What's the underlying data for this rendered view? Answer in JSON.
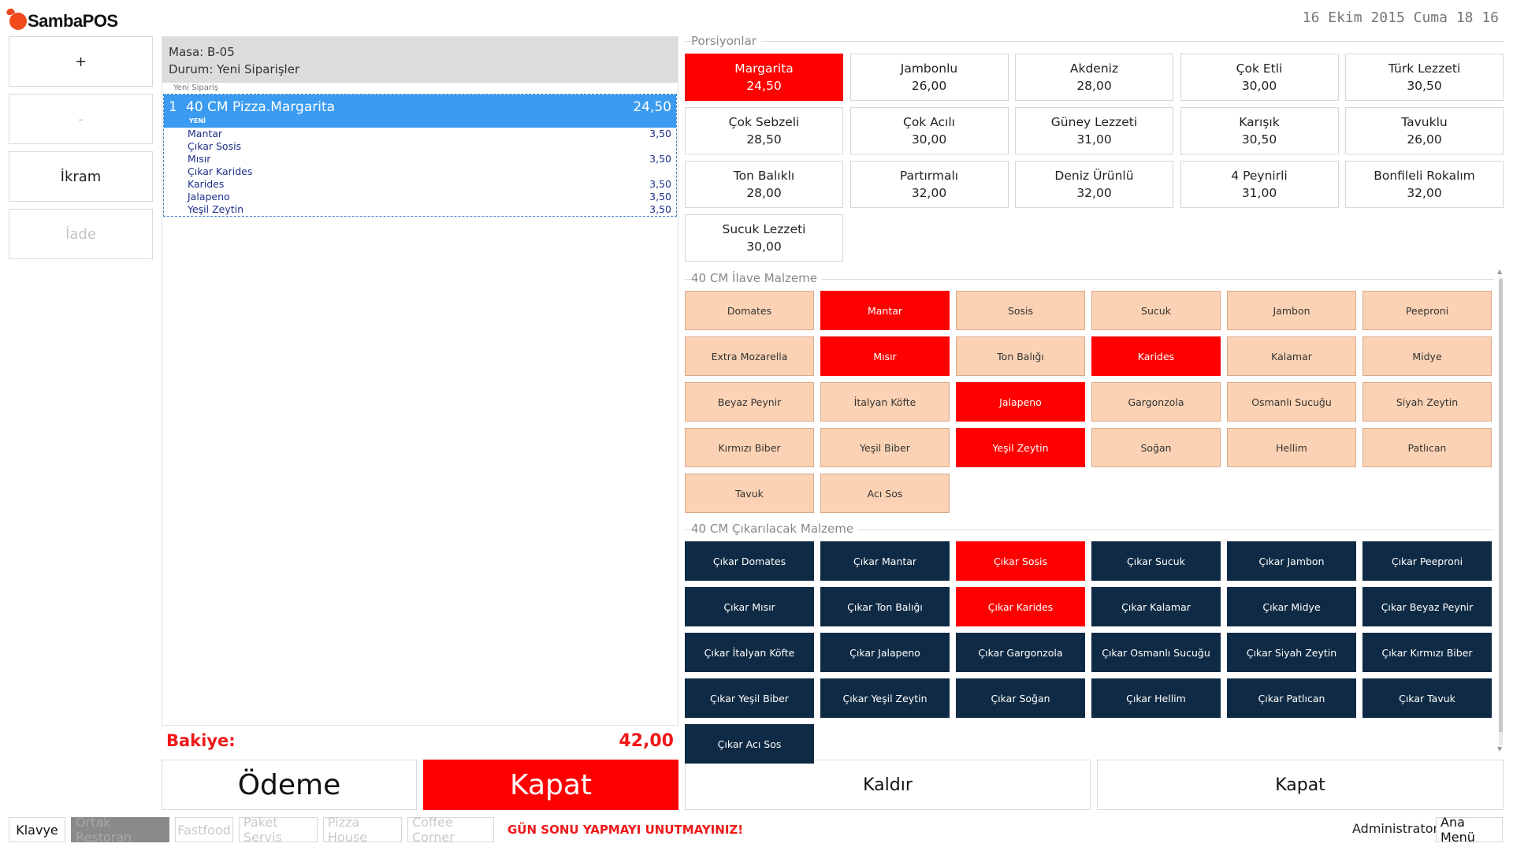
{
  "header": {
    "logo_text": "SambaPOS",
    "datetime": "16 Ekim 2015 Cuma 18 16"
  },
  "left_actions": [
    {
      "label": "+",
      "enabled": true
    },
    {
      "label": "-",
      "enabled": false
    },
    {
      "label": "İkram",
      "enabled": true
    },
    {
      "label": "İade",
      "enabled": false
    }
  ],
  "ticket": {
    "table": "Masa: B-05",
    "status": "Durum: Yeni Siparişler",
    "group_label": "Yeni Sipariş",
    "order": {
      "qty": "1",
      "name": "40 CM Pizza.Margarita",
      "price": "24,50",
      "state": "YENİ",
      "modifiers": [
        {
          "name": "Mantar",
          "price": "3,50"
        },
        {
          "name": "Çıkar Sosis",
          "price": ""
        },
        {
          "name": "Mısır",
          "price": "3,50"
        },
        {
          "name": "Çıkar Karides",
          "price": ""
        },
        {
          "name": "Karides",
          "price": "3,50"
        },
        {
          "name": "Jalapeno",
          "price": "3,50"
        },
        {
          "name": "Yeşil Zeytin",
          "price": "3,50"
        }
      ]
    },
    "balance_label": "Bakiye:",
    "balance_value": "42,00"
  },
  "bottom_buttons": {
    "odeme": "Ödeme",
    "kapat_red": "Kapat",
    "kaldir": "Kaldır",
    "kapat": "Kapat"
  },
  "portions": {
    "title": "Porsiyonlar",
    "items": [
      {
        "name": "Margarita",
        "price": "24,50",
        "selected": true
      },
      {
        "name": "Jambonlu",
        "price": "26,00"
      },
      {
        "name": "Akdeniz",
        "price": "28,00"
      },
      {
        "name": "Çok Etli",
        "price": "30,00"
      },
      {
        "name": "Türk Lezzeti",
        "price": "30,50"
      },
      {
        "name": "Çok Sebzeli",
        "price": "28,50"
      },
      {
        "name": "Çok Acılı",
        "price": "30,00"
      },
      {
        "name": "Güney Lezzeti",
        "price": "31,00"
      },
      {
        "name": "Karışık",
        "price": "30,50"
      },
      {
        "name": "Tavuklu",
        "price": "26,00"
      },
      {
        "name": "Ton Balıklı",
        "price": "28,00"
      },
      {
        "name": "Partırmalı",
        "price": "32,00"
      },
      {
        "name": "Deniz Ürünlü",
        "price": "32,00"
      },
      {
        "name": "4 Peynirli",
        "price": "31,00"
      },
      {
        "name": "Bonfileli Rokalım",
        "price": "32,00"
      },
      {
        "name": "Sucuk Lezzeti",
        "price": "30,00"
      }
    ]
  },
  "extras": {
    "title": "40 CM İlave Malzeme",
    "items": [
      {
        "name": "Domates"
      },
      {
        "name": "Mantar",
        "selected": true
      },
      {
        "name": "Sosis"
      },
      {
        "name": "Sucuk"
      },
      {
        "name": "Jambon"
      },
      {
        "name": "Peeproni"
      },
      {
        "name": "Extra Mozarella"
      },
      {
        "name": "Mısır",
        "selected": true
      },
      {
        "name": "Ton Balığı"
      },
      {
        "name": "Karides",
        "selected": true
      },
      {
        "name": "Kalamar"
      },
      {
        "name": "Midye"
      },
      {
        "name": "Beyaz Peynir"
      },
      {
        "name": "İtalyan Köfte"
      },
      {
        "name": "Jalapeno",
        "selected": true
      },
      {
        "name": "Gargonzola"
      },
      {
        "name": "Osmanlı Sucuğu"
      },
      {
        "name": "Siyah Zeytin"
      },
      {
        "name": "Kırmızı Biber"
      },
      {
        "name": "Yeşil Biber"
      },
      {
        "name": "Yeşil Zeytin",
        "selected": true
      },
      {
        "name": "Soğan"
      },
      {
        "name": "Hellim"
      },
      {
        "name": "Patlıcan"
      },
      {
        "name": "Tavuk"
      },
      {
        "name": "Acı Sos"
      }
    ]
  },
  "removals": {
    "title": "40 CM Çıkarılacak Malzeme",
    "items": [
      {
        "name": "Çıkar Domates"
      },
      {
        "name": "Çıkar Mantar"
      },
      {
        "name": "Çıkar Sosis",
        "selected": true
      },
      {
        "name": "Çıkar Sucuk"
      },
      {
        "name": "Çıkar Jambon"
      },
      {
        "name": "Çıkar Peeproni"
      },
      {
        "name": "Çıkar Mısır"
      },
      {
        "name": "Çıkar Ton Balığı"
      },
      {
        "name": "Çıkar Karides",
        "selected": true
      },
      {
        "name": "Çıkar Kalamar"
      },
      {
        "name": "Çıkar Midye"
      },
      {
        "name": "Çıkar Beyaz Peynir"
      },
      {
        "name": "Çıkar İtalyan Köfte"
      },
      {
        "name": "Çıkar Jalapeno"
      },
      {
        "name": "Çıkar Gargonzola"
      },
      {
        "name": "Çıkar Osmanlı Sucuğu"
      },
      {
        "name": "Çıkar Siyah Zeytin"
      },
      {
        "name": "Çıkar Kırmızı Biber"
      },
      {
        "name": "Çıkar Yeşil Biber"
      },
      {
        "name": "Çıkar Yeşil Zeytin"
      },
      {
        "name": "Çıkar Soğan"
      },
      {
        "name": "Çıkar Hellim"
      },
      {
        "name": "Çıkar Patlıcan"
      },
      {
        "name": "Çıkar Tavuk"
      },
      {
        "name": "Çıkar Acı Sos"
      }
    ]
  },
  "footer": {
    "keyboard": "Klavye",
    "departments": [
      {
        "label": "Ortak Restoran",
        "active": true
      },
      {
        "label": "Fastfood"
      },
      {
        "label": "Paket Servis"
      },
      {
        "label": "Pizza House"
      },
      {
        "label": "Coffee Corner"
      }
    ],
    "warning": "GÜN SONU YAPMAYI UNUTMAYINIZ!",
    "user": "Administrator",
    "main_menu": "Ana Menü"
  },
  "colors": {
    "selected_red": "#ff0000",
    "topping_peach": "#fbd3b4",
    "removal_navy": "#0f2a44",
    "order_blue": "#3a9bf0",
    "warning_red": "#f01818"
  }
}
